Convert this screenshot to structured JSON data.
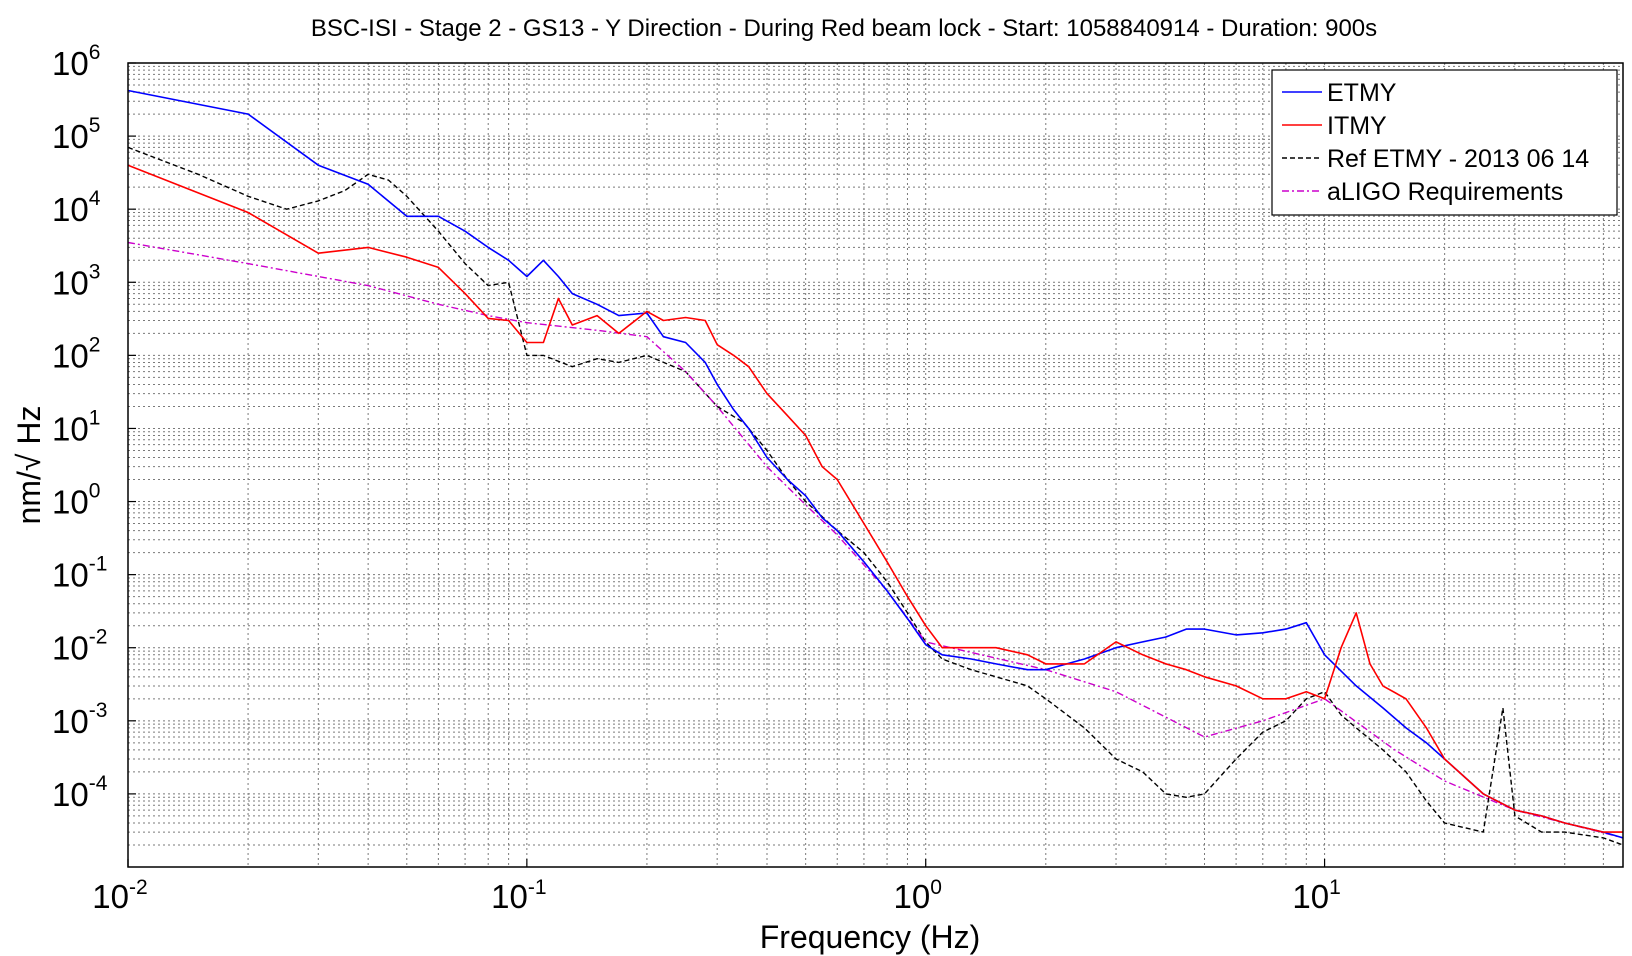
{
  "chart_data": {
    "type": "line",
    "title": "BSC-ISI - Stage 2 - GS13 - Y Direction - During Red beam lock - Start: 1058840914 - Duration: 900s",
    "xlabel": "Frequency (Hz)",
    "ylabel": "nm/√ Hz",
    "xscale": "log",
    "yscale": "log",
    "xlim": [
      0.01,
      56
    ],
    "ylim": [
      1e-05,
      1000000
    ],
    "x_ticks": [
      {
        "base": "10",
        "exp": "-2"
      },
      {
        "base": "10",
        "exp": "-1"
      },
      {
        "base": "10",
        "exp": "0"
      },
      {
        "base": "10",
        "exp": "1"
      }
    ],
    "y_ticks": [
      {
        "base": "10",
        "exp": "6"
      },
      {
        "base": "10",
        "exp": "5"
      },
      {
        "base": "10",
        "exp": "4"
      },
      {
        "base": "10",
        "exp": "3"
      },
      {
        "base": "10",
        "exp": "2"
      },
      {
        "base": "10",
        "exp": "1"
      },
      {
        "base": "10",
        "exp": "0"
      },
      {
        "base": "10",
        "exp": "-1"
      },
      {
        "base": "10",
        "exp": "-2"
      },
      {
        "base": "10",
        "exp": "-3"
      },
      {
        "base": "10",
        "exp": "-4"
      }
    ],
    "grid": true,
    "legend_position": "top-right",
    "series": [
      {
        "name": "ETMY",
        "color": "#0000ff",
        "style": "solid",
        "x": [
          0.01,
          0.02,
          0.03,
          0.04,
          0.05,
          0.06,
          0.07,
          0.08,
          0.09,
          0.1,
          0.11,
          0.12,
          0.13,
          0.15,
          0.17,
          0.2,
          0.22,
          0.25,
          0.28,
          0.3,
          0.33,
          0.36,
          0.4,
          0.45,
          0.5,
          0.55,
          0.6,
          0.7,
          0.8,
          0.9,
          1.0,
          1.1,
          1.3,
          1.5,
          1.8,
          2.0,
          2.5,
          3.0,
          3.5,
          4.0,
          4.5,
          5.0,
          6.0,
          7.0,
          8.0,
          9.0,
          10.0,
          12.0,
          14.0,
          16.0,
          18.0,
          20.0,
          25.0,
          30.0,
          35.0,
          40.0,
          50.0,
          56.0
        ],
        "y": [
          420000,
          200000,
          40000,
          22000,
          8000,
          8000,
          5000,
          3000,
          2000,
          1200,
          2000,
          1200,
          700,
          500,
          350,
          380,
          180,
          150,
          80,
          40,
          18,
          10,
          4,
          2,
          1.2,
          0.6,
          0.4,
          0.15,
          0.06,
          0.025,
          0.011,
          0.008,
          0.007,
          0.006,
          0.005,
          0.005,
          0.007,
          0.01,
          0.012,
          0.014,
          0.018,
          0.018,
          0.015,
          0.016,
          0.018,
          0.022,
          0.008,
          0.003,
          0.0015,
          0.0008,
          0.0005,
          0.0003,
          0.0001,
          6e-05,
          5e-05,
          4e-05,
          3e-05,
          2.5e-05
        ]
      },
      {
        "name": "ITMY",
        "color": "#ff0000",
        "style": "solid",
        "x": [
          0.01,
          0.02,
          0.03,
          0.04,
          0.05,
          0.06,
          0.07,
          0.08,
          0.09,
          0.1,
          0.11,
          0.12,
          0.13,
          0.15,
          0.17,
          0.2,
          0.22,
          0.25,
          0.28,
          0.3,
          0.33,
          0.36,
          0.4,
          0.45,
          0.5,
          0.55,
          0.6,
          0.7,
          0.8,
          0.9,
          1.0,
          1.1,
          1.3,
          1.5,
          1.8,
          2.0,
          2.5,
          3.0,
          3.5,
          4.0,
          4.5,
          5.0,
          6.0,
          7.0,
          8.0,
          9.0,
          10.0,
          11.0,
          12.0,
          13.0,
          14.0,
          16.0,
          18.0,
          20.0,
          25.0,
          30.0,
          35.0,
          40.0,
          50.0,
          56.0
        ],
        "y": [
          40000,
          9000,
          2500,
          3000,
          2200,
          1600,
          700,
          320,
          300,
          150,
          150,
          600,
          260,
          350,
          200,
          400,
          300,
          330,
          300,
          140,
          100,
          70,
          30,
          15,
          8,
          3,
          2,
          0.5,
          0.15,
          0.05,
          0.02,
          0.01,
          0.01,
          0.01,
          0.008,
          0.006,
          0.006,
          0.012,
          0.008,
          0.006,
          0.005,
          0.004,
          0.003,
          0.002,
          0.002,
          0.0025,
          0.002,
          0.01,
          0.03,
          0.006,
          0.003,
          0.002,
          0.0008,
          0.0003,
          0.0001,
          6e-05,
          5e-05,
          4e-05,
          3e-05,
          3e-05
        ]
      },
      {
        "name": "Ref ETMY - 2013 06 14",
        "color": "#000000",
        "style": "dashed",
        "x": [
          0.01,
          0.015,
          0.02,
          0.025,
          0.03,
          0.035,
          0.04,
          0.045,
          0.05,
          0.06,
          0.07,
          0.08,
          0.09,
          0.1,
          0.11,
          0.13,
          0.15,
          0.17,
          0.2,
          0.25,
          0.3,
          0.35,
          0.4,
          0.45,
          0.5,
          0.6,
          0.7,
          0.8,
          0.9,
          1.0,
          1.1,
          1.3,
          1.5,
          1.8,
          2.0,
          2.5,
          3.0,
          3.5,
          4.0,
          4.5,
          5.0,
          6.0,
          7.0,
          8.0,
          9.0,
          10.0,
          11.0,
          12.0,
          14.0,
          16.0,
          18.0,
          20.0,
          25.0,
          28.0,
          30.0,
          35.0,
          40.0,
          50.0,
          56.0
        ],
        "y": [
          70000,
          30000,
          15000,
          10000,
          13000,
          18000,
          30000,
          25000,
          15000,
          5000,
          1800,
          900,
          1000,
          100,
          100,
          70,
          90,
          80,
          100,
          60,
          20,
          12,
          5,
          2,
          1,
          0.4,
          0.2,
          0.08,
          0.03,
          0.012,
          0.007,
          0.005,
          0.004,
          0.003,
          0.002,
          0.0008,
          0.0003,
          0.0002,
          0.0001,
          9e-05,
          0.0001,
          0.0003,
          0.0007,
          0.001,
          0.002,
          0.0025,
          0.0012,
          0.0008,
          0.0004,
          0.0002,
          8e-05,
          4e-05,
          3e-05,
          0.0015,
          5e-05,
          3e-05,
          3e-05,
          2.5e-05,
          2e-05
        ]
      },
      {
        "name": "aLIGO Requirements",
        "color": "#cc00cc",
        "style": "dashdot",
        "x": [
          0.01,
          0.02,
          0.04,
          0.06,
          0.08,
          0.1,
          0.15,
          0.2,
          0.25,
          0.3,
          0.4,
          0.5,
          0.6,
          0.8,
          1.0,
          2.0,
          3.0,
          5.0,
          7.0,
          10.0,
          15.0,
          20.0,
          30.0,
          56.0
        ],
        "y": [
          3500,
          1800,
          900,
          500,
          350,
          280,
          220,
          180,
          60,
          20,
          3,
          0.9,
          0.35,
          0.06,
          0.012,
          0.005,
          0.0025,
          0.0006,
          0.001,
          0.002,
          0.0004,
          0.00015,
          6e-05,
          2.5e-05
        ]
      }
    ]
  }
}
